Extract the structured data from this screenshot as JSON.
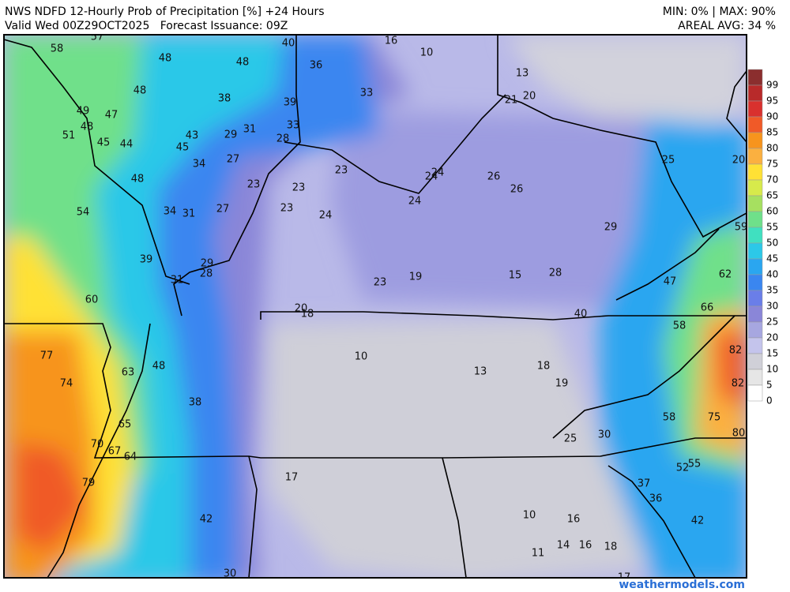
{
  "header": {
    "title": "NWS NDFD 12-Hourly Prob of Precipitation [%] +24 Hours",
    "subtitle": "Valid Wed 00Z29OCT2025   Forecast Issuance: 09Z",
    "min_max": "MIN: 0% | MAX: 90%",
    "areal_avg": "AREAL AVG: 34 %"
  },
  "colorbar": [
    {
      "label": 99,
      "color": "#8b2e2e"
    },
    {
      "label": 95,
      "color": "#b82a2a"
    },
    {
      "label": 90,
      "color": "#d9312e"
    },
    {
      "label": 85,
      "color": "#f05a28"
    },
    {
      "label": 80,
      "color": "#f7941d"
    },
    {
      "label": 75,
      "color": "#fbb040"
    },
    {
      "label": 70,
      "color": "#ffe135"
    },
    {
      "label": 65,
      "color": "#d7ea4b"
    },
    {
      "label": 60,
      "color": "#a6e060"
    },
    {
      "label": 55,
      "color": "#6fe08a"
    },
    {
      "label": 50,
      "color": "#40e0c0"
    },
    {
      "label": 45,
      "color": "#2cc8e8"
    },
    {
      "label": 40,
      "color": "#2aa6f0"
    },
    {
      "label": 35,
      "color": "#3a86f0"
    },
    {
      "label": 30,
      "color": "#6a7ee8"
    },
    {
      "label": 25,
      "color": "#8a86d8"
    },
    {
      "label": 20,
      "color": "#a7a7e0"
    },
    {
      "label": 15,
      "color": "#c4c4ec"
    },
    {
      "label": 10,
      "color": "#d0d0d8"
    },
    {
      "label": 5,
      "color": "#e6e6e6"
    },
    {
      "label": 0,
      "color": "#ffffff"
    }
  ],
  "map_labels": [
    57,
    58,
    48,
    48,
    40,
    36,
    16,
    10,
    13,
    48,
    38,
    33,
    21,
    20,
    49,
    47,
    39,
    48,
    51,
    45,
    44,
    43,
    29,
    31,
    33,
    28,
    45,
    27,
    34,
    23,
    24,
    24,
    26,
    25,
    20,
    48,
    23,
    23,
    26,
    23,
    24,
    24,
    54,
    34,
    31,
    27,
    29,
    59,
    39,
    29,
    28,
    31,
    19,
    15,
    28,
    62,
    23,
    47,
    60,
    20,
    18,
    40,
    66,
    58,
    77,
    10,
    82,
    13,
    18,
    63,
    48,
    74,
    19,
    82,
    38,
    58,
    75,
    65,
    25,
    30,
    80,
    70,
    67,
    64,
    55,
    52,
    17,
    79,
    37,
    36,
    10,
    16,
    42,
    42,
    14,
    16,
    18,
    11,
    30,
    17
  ],
  "watermark": "weathermodels.com"
}
